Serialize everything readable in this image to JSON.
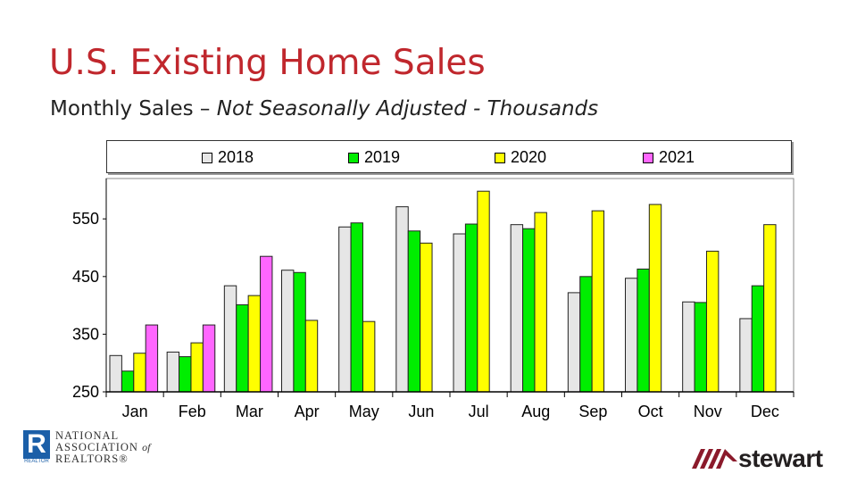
{
  "title": "U.S. Existing Home Sales",
  "subtitle_plain": "Monthly Sales – ",
  "subtitle_italic": "Not Seasonally Adjusted - Thousands",
  "logos": {
    "nar": {
      "mark": "R",
      "mark_caption": "REALTOR",
      "line1": "NATIONAL",
      "line2": "ASSOCIATION",
      "line2_suffix": "of",
      "line3": "REALTORS®"
    },
    "stewart": "stewart"
  },
  "chart_data": {
    "type": "bar",
    "categories": [
      "Jan",
      "Feb",
      "Mar",
      "Apr",
      "May",
      "Jun",
      "Jul",
      "Aug",
      "Sep",
      "Oct",
      "Nov",
      "Dec"
    ],
    "series": [
      {
        "name": "2018",
        "color": "#e6e6e6",
        "values": [
          313,
          319,
          434,
          461,
          536,
          571,
          524,
          540,
          422,
          447,
          406,
          377
        ]
      },
      {
        "name": "2019",
        "color": "#00ee00",
        "values": [
          286,
          311,
          401,
          457,
          543,
          529,
          541,
          533,
          450,
          463,
          405,
          434
        ]
      },
      {
        "name": "2020",
        "color": "#ffff00",
        "values": [
          317,
          335,
          417,
          374,
          372,
          508,
          598,
          561,
          564,
          575,
          494,
          540
        ]
      },
      {
        "name": "2021",
        "color": "#ff66ff",
        "values": [
          366,
          366,
          485,
          null,
          null,
          null,
          null,
          null,
          null,
          null,
          null,
          null
        ]
      }
    ],
    "yticks": [
      250,
      350,
      450,
      550
    ],
    "ylim": [
      250,
      620
    ],
    "grid": false,
    "legend": "top",
    "xlabel": "",
    "ylabel": ""
  }
}
